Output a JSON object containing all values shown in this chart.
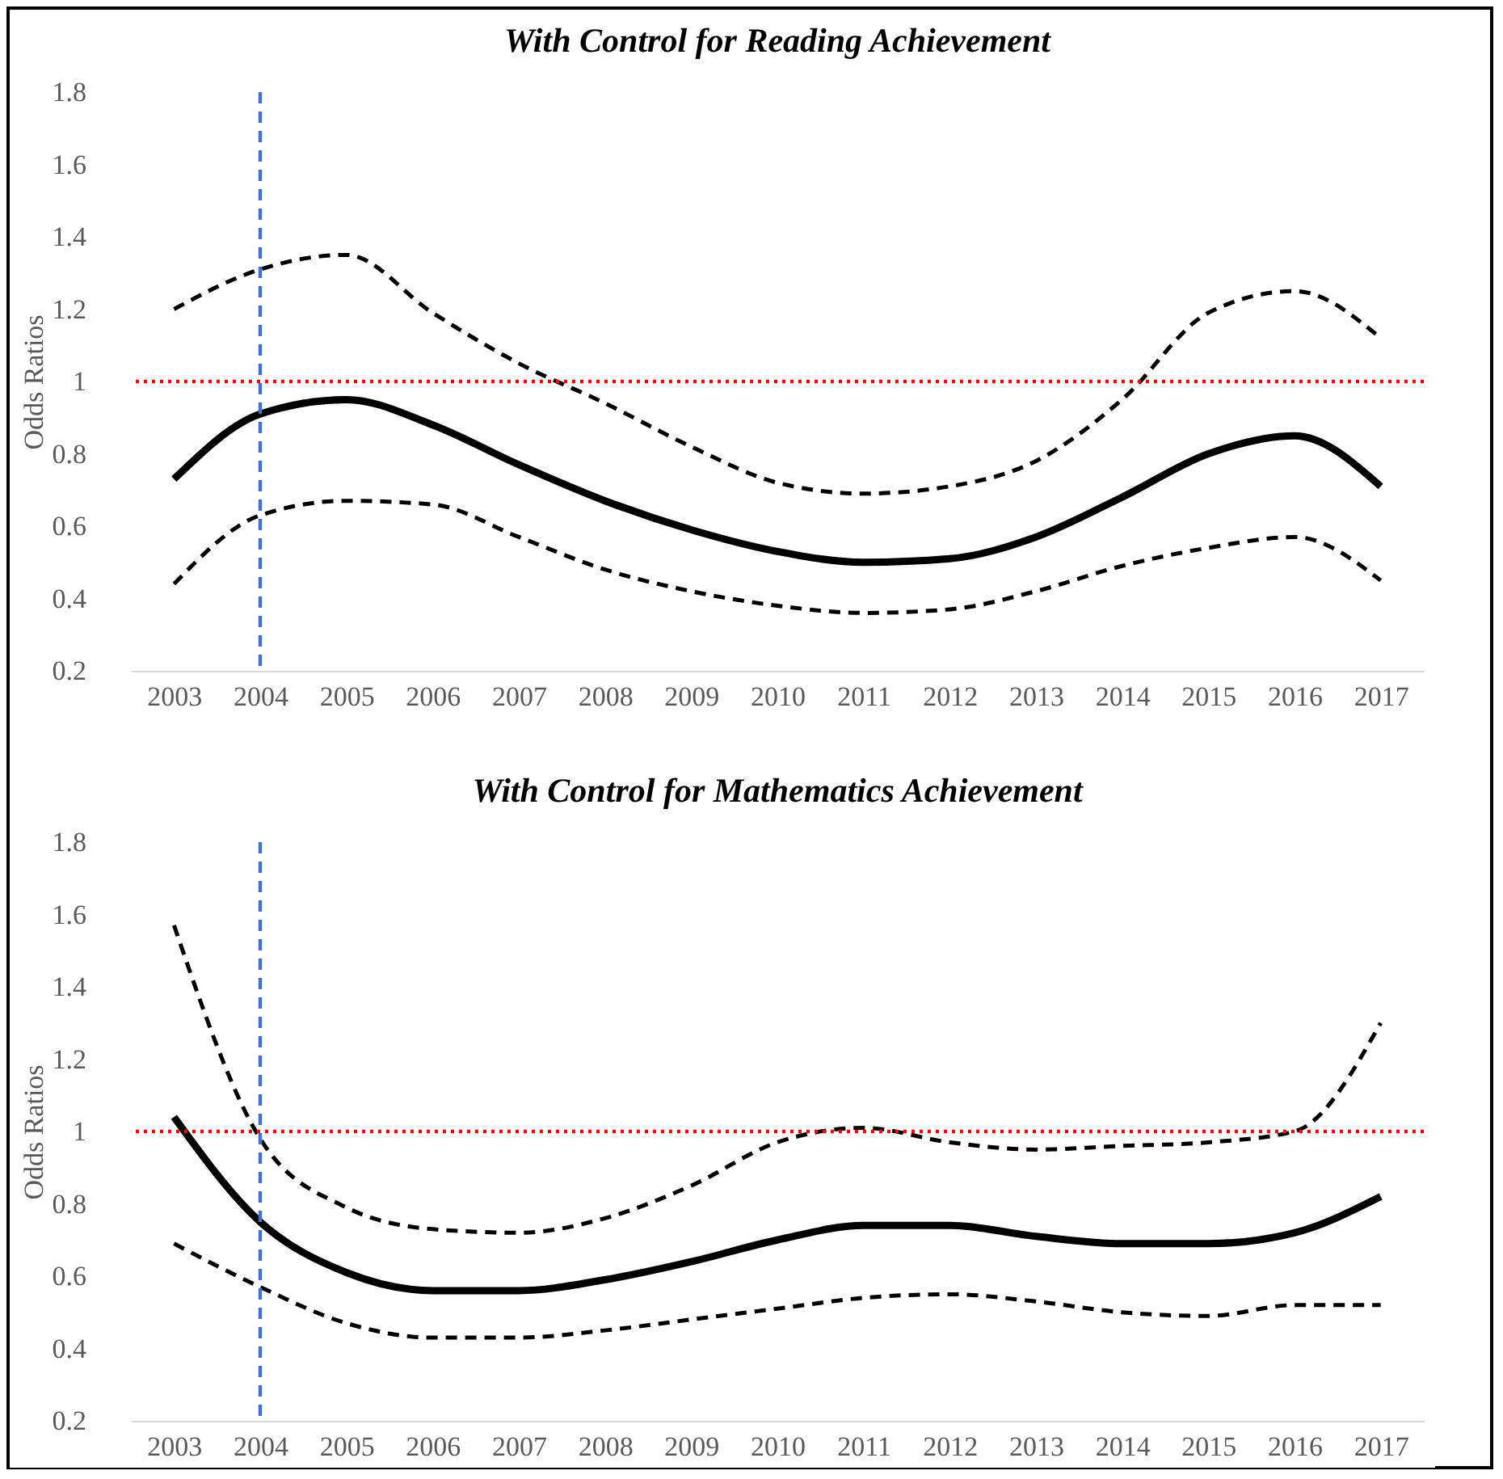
{
  "chart_data": [
    {
      "type": "line",
      "title": "With Control for Reading Achievement",
      "ylabel": "Odds Ratios",
      "categories": [
        "2003",
        "2004",
        "2005",
        "2006",
        "2007",
        "2008",
        "2009",
        "2010",
        "2011",
        "2012",
        "2013",
        "2014",
        "2015",
        "2016",
        "2017"
      ],
      "ylim": [
        0.2,
        1.8
      ],
      "yticks": [
        0.2,
        0.4,
        0.6,
        0.8,
        1,
        1.2,
        1.4,
        1.6,
        1.8
      ],
      "grid": false,
      "series": [
        {
          "color": "#000000",
          "line_style": "dashed",
          "values": [
            1.2,
            1.31,
            1.35,
            1.19,
            1.05,
            0.94,
            0.82,
            0.72,
            0.69,
            0.71,
            0.78,
            0.95,
            1.19,
            1.25,
            1.12
          ]
        },
        {
          "color": "#000000",
          "line_style": "solid",
          "values": [
            0.73,
            0.91,
            0.95,
            0.88,
            0.77,
            0.67,
            0.59,
            0.53,
            0.5,
            0.51,
            0.57,
            0.68,
            0.8,
            0.85,
            0.71
          ]
        },
        {
          "color": "#000000",
          "line_style": "dashed",
          "values": [
            0.44,
            0.63,
            0.67,
            0.66,
            0.57,
            0.48,
            0.42,
            0.38,
            0.36,
            0.37,
            0.42,
            0.49,
            0.54,
            0.57,
            0.45
          ]
        }
      ],
      "ref_lines": [
        {
          "axis": "y",
          "value": 1,
          "color": "#ff0000",
          "line_style": "dotted"
        },
        {
          "axis": "x",
          "value": "2004",
          "color": "#4472c4",
          "line_style": "dashed"
        }
      ]
    },
    {
      "type": "line",
      "title": "With Control for Mathematics Achievement",
      "ylabel": "Odds Ratios",
      "categories": [
        "2003",
        "2004",
        "2005",
        "2006",
        "2007",
        "2008",
        "2009",
        "2010",
        "2011",
        "2012",
        "2013",
        "2014",
        "2015",
        "2016",
        "2017"
      ],
      "ylim": [
        0.2,
        1.8
      ],
      "yticks": [
        0.2,
        0.4,
        0.6,
        0.8,
        1,
        1.2,
        1.4,
        1.6,
        1.8
      ],
      "grid": false,
      "series": [
        {
          "color": "#000000",
          "line_style": "dashed",
          "values": [
            1.57,
            0.98,
            0.79,
            0.73,
            0.72,
            0.76,
            0.85,
            0.97,
            1.01,
            0.97,
            0.95,
            0.96,
            0.97,
            1.0,
            1.3
          ]
        },
        {
          "color": "#000000",
          "line_style": "solid",
          "values": [
            1.04,
            0.75,
            0.61,
            0.56,
            0.56,
            0.59,
            0.64,
            0.7,
            0.74,
            0.74,
            0.71,
            0.69,
            0.69,
            0.72,
            0.82
          ]
        },
        {
          "color": "#000000",
          "line_style": "dashed",
          "values": [
            0.69,
            0.57,
            0.47,
            0.43,
            0.43,
            0.45,
            0.48,
            0.51,
            0.54,
            0.55,
            0.53,
            0.5,
            0.49,
            0.52,
            0.52
          ]
        }
      ],
      "ref_lines": [
        {
          "axis": "y",
          "value": 1,
          "color": "#ff0000",
          "line_style": "dotted"
        },
        {
          "axis": "x",
          "value": "2004",
          "color": "#4472c4",
          "line_style": "dashed"
        }
      ]
    }
  ]
}
